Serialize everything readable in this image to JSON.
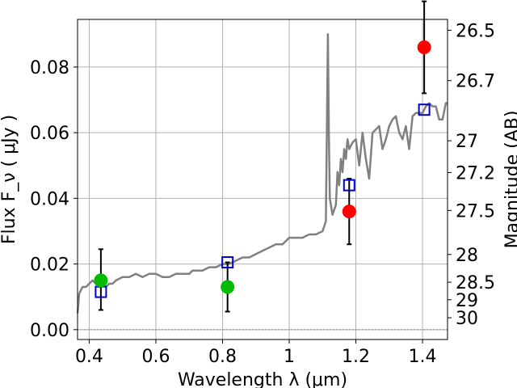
{
  "chart_data": {
    "type": "scatter",
    "xlabel": "Wavelength  λ (μm)",
    "ylabel": "Flux  F_ν  ( μJy )",
    "y2label": "Magnitude (AB)",
    "xlim": [
      0.365,
      1.475
    ],
    "ylim": [
      -0.003,
      0.0945
    ],
    "grid": true,
    "x_ticks": [
      0.4,
      0.6,
      0.8,
      1.0,
      1.2,
      1.4
    ],
    "x_tick_labels": [
      "0.4",
      "0.6",
      "0.8",
      "1",
      "1.2",
      "1.4"
    ],
    "y_ticks": [
      0.0,
      0.02,
      0.04,
      0.06,
      0.08
    ],
    "y_tick_labels": [
      "0.00",
      "0.02",
      "0.04",
      "0.06",
      "0.08"
    ],
    "y2_ticks": [
      26.5,
      26.7,
      27,
      27.2,
      27.5,
      28,
      28.5,
      29,
      30
    ],
    "y2_tick_labels": [
      "26.5",
      "26.7",
      "27",
      "27.2",
      "27.5",
      "28",
      "28.5",
      "29",
      "30"
    ],
    "colors": {
      "spectrum": "#808080",
      "model_photometry": "#0000cc",
      "detection": "#ff0000",
      "green_detection": "#00bb00",
      "errorbar": "#000000",
      "grid": "#b0b0b0"
    },
    "spectrum": {
      "x": [
        0.365,
        0.37,
        0.38,
        0.39,
        0.4,
        0.41,
        0.42,
        0.43,
        0.44,
        0.45,
        0.46,
        0.47,
        0.48,
        0.5,
        0.52,
        0.54,
        0.56,
        0.58,
        0.6,
        0.62,
        0.64,
        0.66,
        0.68,
        0.7,
        0.71,
        0.72,
        0.74,
        0.76,
        0.78,
        0.8,
        0.82,
        0.84,
        0.86,
        0.88,
        0.9,
        0.92,
        0.94,
        0.96,
        0.98,
        1.0,
        1.02,
        1.04,
        1.06,
        1.08,
        1.1,
        1.11,
        1.113,
        1.116,
        1.119,
        1.122,
        1.13,
        1.14,
        1.145,
        1.15,
        1.155,
        1.16,
        1.165,
        1.17,
        1.175,
        1.18,
        1.19,
        1.2,
        1.21,
        1.22,
        1.23,
        1.24,
        1.25,
        1.26,
        1.27,
        1.28,
        1.29,
        1.3,
        1.31,
        1.32,
        1.33,
        1.34,
        1.35,
        1.36,
        1.37,
        1.38,
        1.39,
        1.4,
        1.41,
        1.42,
        1.43,
        1.44,
        1.45,
        1.46,
        1.47,
        1.475
      ],
      "y": [
        0.005,
        0.011,
        0.013,
        0.013,
        0.014,
        0.015,
        0.014,
        0.013,
        0.014,
        0.013,
        0.014,
        0.014,
        0.015,
        0.016,
        0.016,
        0.017,
        0.016,
        0.017,
        0.017,
        0.016,
        0.016,
        0.017,
        0.017,
        0.017,
        0.018,
        0.018,
        0.018,
        0.019,
        0.019,
        0.02,
        0.02,
        0.021,
        0.022,
        0.022,
        0.023,
        0.024,
        0.025,
        0.026,
        0.026,
        0.028,
        0.028,
        0.028,
        0.029,
        0.029,
        0.03,
        0.033,
        0.06,
        0.09,
        0.06,
        0.04,
        0.035,
        0.038,
        0.048,
        0.044,
        0.052,
        0.048,
        0.055,
        0.052,
        0.058,
        0.055,
        0.057,
        0.058,
        0.05,
        0.06,
        0.052,
        0.046,
        0.06,
        0.061,
        0.062,
        0.055,
        0.058,
        0.062,
        0.064,
        0.065,
        0.06,
        0.058,
        0.062,
        0.055,
        0.065,
        0.066,
        0.066,
        0.066,
        0.068,
        0.069,
        0.068,
        0.068,
        0.064,
        0.064,
        0.069,
        0.069
      ]
    },
    "model_photometry": {
      "x": [
        0.435,
        0.815,
        1.18,
        1.405
      ],
      "y": [
        0.0115,
        0.0205,
        0.044,
        0.067
      ]
    },
    "detections": {
      "x": [
        0.435,
        0.815,
        1.18,
        1.405
      ],
      "y": [
        0.015,
        0.013,
        0.036,
        0.086
      ],
      "yerr_low": [
        0.009,
        0.0075,
        0.01,
        0.014
      ],
      "yerr_high": [
        0.0095,
        0.0075,
        0.01,
        0.014
      ],
      "colors": [
        "#00bb00",
        "#00bb00",
        "#ff0000",
        "#ff0000"
      ]
    }
  }
}
